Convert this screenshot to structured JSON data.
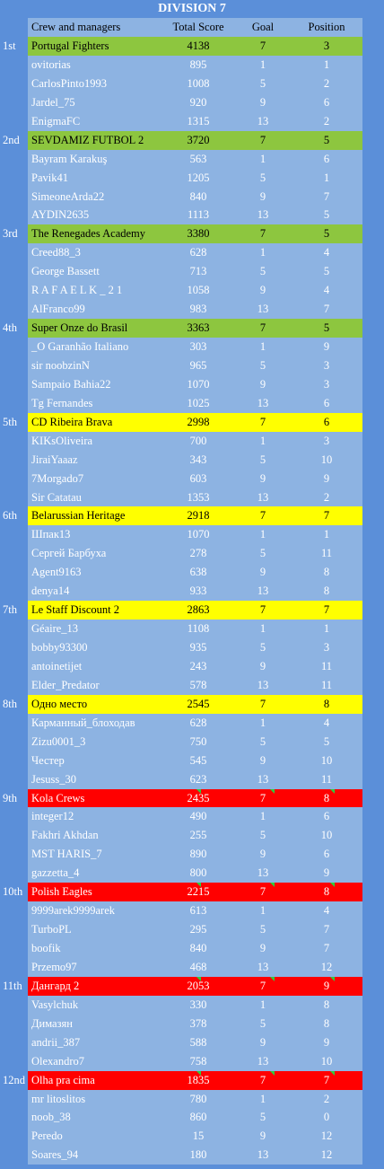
{
  "title": "DIVISION 7",
  "columns": {
    "name": "Crew and managers",
    "score": "Total Score",
    "goal": "Goal",
    "position": "Position"
  },
  "colors": {
    "background": "#5b8fd9",
    "row": "#8db3e2",
    "green": "#8dc63f",
    "yellow": "#ffff00",
    "red": "#ff0000"
  },
  "groups": [
    {
      "rank": "1st",
      "color": "green",
      "team": {
        "name": "Portugal Fighters",
        "score": "4138",
        "goal": "7",
        "position": "3"
      },
      "members": [
        {
          "name": "ovitorias",
          "score": "895",
          "goal": "1",
          "position": "1"
        },
        {
          "name": "CarlosPinto1993",
          "score": "1008",
          "goal": "5",
          "position": "2"
        },
        {
          "name": "Jardel_75",
          "score": "920",
          "goal": "9",
          "position": "6"
        },
        {
          "name": "EnigmaFC",
          "score": "1315",
          "goal": "13",
          "position": "2"
        }
      ]
    },
    {
      "rank": "2nd",
      "color": "green",
      "team": {
        "name": "SEVDAMIZ FUTBOL 2",
        "score": "3720",
        "goal": "7",
        "position": "5"
      },
      "members": [
        {
          "name": "Bayram Karakuş",
          "score": "563",
          "goal": "1",
          "position": "6"
        },
        {
          "name": "Pavik41",
          "score": "1205",
          "goal": "5",
          "position": "1"
        },
        {
          "name": "SimeoneArda22",
          "score": "840",
          "goal": "9",
          "position": "7"
        },
        {
          "name": "AYDIN2635",
          "score": "1113",
          "goal": "13",
          "position": "5"
        }
      ]
    },
    {
      "rank": "3rd",
      "color": "green",
      "team": {
        "name": "The Renegades Academy",
        "score": "3380",
        "goal": "7",
        "position": "5"
      },
      "members": [
        {
          "name": "Creed88_3",
          "score": "628",
          "goal": "1",
          "position": "4"
        },
        {
          "name": "George Bassett",
          "score": "713",
          "goal": "5",
          "position": "5"
        },
        {
          "name": "R A F A E L K _ 2 1",
          "score": "1058",
          "goal": "9",
          "position": "4"
        },
        {
          "name": "AlFranco99",
          "score": "983",
          "goal": "13",
          "position": "7"
        }
      ]
    },
    {
      "rank": "4th",
      "color": "green",
      "team": {
        "name": "Super Onze do Brasil",
        "score": "3363",
        "goal": "7",
        "position": "5"
      },
      "members": [
        {
          "name": "_O Garanhão Italiano",
          "score": "303",
          "goal": "1",
          "position": "9"
        },
        {
          "name": "sir noobzinN",
          "score": "965",
          "goal": "5",
          "position": "3"
        },
        {
          "name": "Sampaio Bahia22",
          "score": "1070",
          "goal": "9",
          "position": "3"
        },
        {
          "name": "Tg Fernandes",
          "score": "1025",
          "goal": "13",
          "position": "6"
        }
      ]
    },
    {
      "rank": "5th",
      "color": "yellow",
      "team": {
        "name": "CD Ribeira Brava",
        "score": "2998",
        "goal": "7",
        "position": "6"
      },
      "members": [
        {
          "name": "KIKsOliveira",
          "score": "700",
          "goal": "1",
          "position": "3"
        },
        {
          "name": "JiraiYaaaz",
          "score": "343",
          "goal": "5",
          "position": "10"
        },
        {
          "name": "7Morgado7",
          "score": "603",
          "goal": "9",
          "position": "9"
        },
        {
          "name": "Sir Catatau",
          "score": "1353",
          "goal": "13",
          "position": "2"
        }
      ]
    },
    {
      "rank": "6th",
      "color": "yellow",
      "team": {
        "name": "Belarussian Heritage",
        "score": "2918",
        "goal": "7",
        "position": "7"
      },
      "members": [
        {
          "name": "Шпак13",
          "score": "1070",
          "goal": "1",
          "position": "1"
        },
        {
          "name": "Сергей Барбуха",
          "score": "278",
          "goal": "5",
          "position": "11"
        },
        {
          "name": "Agent9163",
          "score": "638",
          "goal": "9",
          "position": "8"
        },
        {
          "name": "denya14",
          "score": "933",
          "goal": "13",
          "position": "8"
        }
      ]
    },
    {
      "rank": "7th",
      "color": "yellow",
      "team": {
        "name": "Le Staff Discount 2",
        "score": "2863",
        "goal": "7",
        "position": "7"
      },
      "members": [
        {
          "name": "Géaire_13",
          "score": "1108",
          "goal": "1",
          "position": "1"
        },
        {
          "name": "bobby93300",
          "score": "935",
          "goal": "5",
          "position": "3"
        },
        {
          "name": "antoinetijet",
          "score": "243",
          "goal": "9",
          "position": "11"
        },
        {
          "name": "Elder_Predator",
          "score": "578",
          "goal": "13",
          "position": "11"
        }
      ]
    },
    {
      "rank": "8th",
      "color": "yellow",
      "team": {
        "name": "Одно место",
        "score": "2545",
        "goal": "7",
        "position": "8"
      },
      "members": [
        {
          "name": "Карманный_блоходав",
          "score": "628",
          "goal": "1",
          "position": "4"
        },
        {
          "name": "Zizu0001_3",
          "score": "750",
          "goal": "5",
          "position": "5"
        },
        {
          "name": "Честер",
          "score": "545",
          "goal": "9",
          "position": "10"
        },
        {
          "name": "Jesuss_30",
          "score": "623",
          "goal": "13",
          "position": "11"
        }
      ]
    },
    {
      "rank": "9th",
      "color": "red",
      "team": {
        "name": "Kola Crews",
        "score": "2435",
        "goal": "7",
        "position": "8"
      },
      "members": [
        {
          "name": "integer12",
          "score": "490",
          "goal": "1",
          "position": "6"
        },
        {
          "name": "Fakhri Akhdan",
          "score": "255",
          "goal": "5",
          "position": "10"
        },
        {
          "name": "MST HARIS_7",
          "score": "890",
          "goal": "9",
          "position": "6"
        },
        {
          "name": "gazzetta_4",
          "score": "800",
          "goal": "13",
          "position": "9"
        }
      ]
    },
    {
      "rank": "10th",
      "color": "red",
      "team": {
        "name": "Polish Eagles",
        "score": "2215",
        "goal": "7",
        "position": "8"
      },
      "members": [
        {
          "name": "9999arek9999arek",
          "score": "613",
          "goal": "1",
          "position": "4"
        },
        {
          "name": "TurboPL",
          "score": "295",
          "goal": "5",
          "position": "7"
        },
        {
          "name": "boofik",
          "score": "840",
          "goal": "9",
          "position": "7"
        },
        {
          "name": "Przemo97",
          "score": "468",
          "goal": "13",
          "position": "12"
        }
      ]
    },
    {
      "rank": "11th",
      "color": "red",
      "team": {
        "name": "Дангард 2",
        "score": "2053",
        "goal": "7",
        "position": "9"
      },
      "members": [
        {
          "name": "Vasylchuk",
          "score": "330",
          "goal": "1",
          "position": "8"
        },
        {
          "name": "Димазян",
          "score": "378",
          "goal": "5",
          "position": "8"
        },
        {
          "name": "andrii_387",
          "score": "588",
          "goal": "9",
          "position": "9"
        },
        {
          "name": "Olexandro7",
          "score": "758",
          "goal": "13",
          "position": "10"
        }
      ]
    },
    {
      "rank": "12nd",
      "color": "red",
      "team": {
        "name": "Olha pra cima",
        "score": "1835",
        "goal": "7",
        "position": "7"
      },
      "members": [
        {
          "name": "mr litoslitos",
          "score": "780",
          "goal": "1",
          "position": "2"
        },
        {
          "name": "noob_38",
          "score": "860",
          "goal": "5",
          "position": "0"
        },
        {
          "name": "Peredo",
          "score": "15",
          "goal": "9",
          "position": "12"
        },
        {
          "name": "Soares_94",
          "score": "180",
          "goal": "13",
          "position": "12"
        }
      ]
    }
  ]
}
